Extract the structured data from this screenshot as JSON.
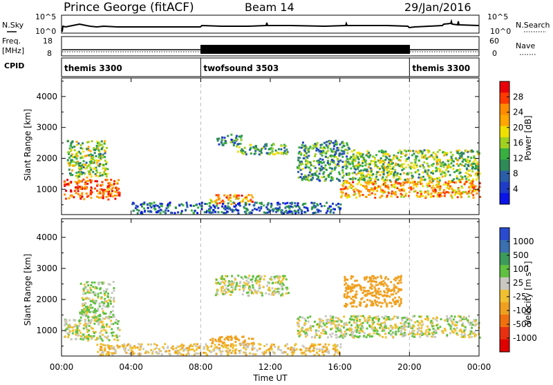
{
  "header": {
    "title": "Prince George (fitACF)",
    "beam": "Beam 14",
    "date": "29/Jan/2016"
  },
  "strips": {
    "nsky_label": "N.Sky",
    "nsky_ticks": [
      "10^5",
      "10^0"
    ],
    "nsearch_label": "N.Search",
    "freq_label_1": "Freq.",
    "freq_label_2": "[MHz]",
    "freq_ticks": [
      "18",
      "8"
    ],
    "nave_label": "Nave",
    "nave_ticks": [
      "60",
      "0"
    ],
    "cpid_label": "CPID",
    "cpid_segments": [
      {
        "name": "themis 3300",
        "start": 0,
        "end": 8
      },
      {
        "name": "twofsound 3503",
        "start": 8,
        "end": 20
      },
      {
        "name": "themis 3300",
        "start": 20,
        "end": 24
      }
    ]
  },
  "power_colorbar": {
    "label": "Power [dB]",
    "ticks": [
      "28",
      "24",
      "20",
      "16",
      "12",
      "8",
      "4"
    ],
    "colors": [
      "#e8000b",
      "#ff3a00",
      "#ff8c00",
      "#ffa600",
      "#f0e000",
      "#a0d020",
      "#38b040",
      "#2e8b57",
      "#2a5ea8",
      "#1e3cc8",
      "#0a14e6"
    ]
  },
  "velocity_colorbar": {
    "label": "Velocity [m s⁻¹]",
    "ticks": [
      "1000",
      "500",
      "100",
      "25",
      "-25",
      "-100",
      "-500",
      "-1000"
    ],
    "colors": [
      "#2a4ad0",
      "#3a6fb0",
      "#3c9a5a",
      "#60c040",
      "#c8c8c0",
      "#f0c030",
      "#f0a020",
      "#f07010",
      "#e83010",
      "#e00000"
    ]
  },
  "chart_data": {
    "type": "heatmap",
    "xlabel": "Time UT",
    "x_ticks": [
      "00:00",
      "04:00",
      "08:00",
      "12:00",
      "16:00",
      "20:00",
      "00:00"
    ],
    "xlim_hours": [
      0,
      24
    ],
    "ylabel": "Slant Range [km]",
    "y_ticks": [
      1000,
      2000,
      3000,
      4000
    ],
    "ylim_km": [
      180,
      4600
    ],
    "panels": [
      {
        "name": "Power [dB]",
        "blobs": [
          {
            "t0": 0.1,
            "t1": 3.3,
            "r0": 700,
            "r1": 1350,
            "value": 26
          },
          {
            "t0": 0.3,
            "t1": 2.6,
            "r0": 1400,
            "r1": 2600,
            "value": 14
          },
          {
            "t0": 8.5,
            "t1": 11.0,
            "r0": 550,
            "r1": 850,
            "value": 22
          },
          {
            "t0": 4.0,
            "t1": 16.0,
            "r0": 250,
            "r1": 600,
            "value": 6
          },
          {
            "t0": 8.8,
            "t1": 10.3,
            "r0": 2450,
            "r1": 2800,
            "value": 8
          },
          {
            "t0": 10.0,
            "t1": 13.0,
            "r0": 2150,
            "r1": 2500,
            "value": 12
          },
          {
            "t0": 13.5,
            "t1": 16.5,
            "r0": 1300,
            "r1": 2600,
            "value": 10
          },
          {
            "t0": 16.0,
            "t1": 24.0,
            "r0": 750,
            "r1": 1300,
            "value": 22
          },
          {
            "t0": 16.5,
            "t1": 24.0,
            "r0": 1300,
            "r1": 2300,
            "value": 14
          }
        ]
      },
      {
        "name": "Velocity [m s⁻¹]",
        "blobs": [
          {
            "t0": 0.1,
            "t1": 3.3,
            "r0": 700,
            "r1": 1400,
            "value": 0
          },
          {
            "t0": 1.0,
            "t1": 3.0,
            "r0": 1400,
            "r1": 2600,
            "value": 20
          },
          {
            "t0": 8.5,
            "t1": 11.0,
            "r0": 550,
            "r1": 850,
            "value": -200
          },
          {
            "t0": 2.0,
            "t1": 16.0,
            "r0": 250,
            "r1": 600,
            "value": -60
          },
          {
            "t0": 8.8,
            "t1": 13.0,
            "r0": 2150,
            "r1": 2800,
            "value": 0
          },
          {
            "t0": 13.5,
            "t1": 24.0,
            "r0": 800,
            "r1": 1500,
            "value": 0
          },
          {
            "t0": 16.2,
            "t1": 19.5,
            "r0": 1800,
            "r1": 2800,
            "value": -250
          }
        ]
      }
    ]
  }
}
